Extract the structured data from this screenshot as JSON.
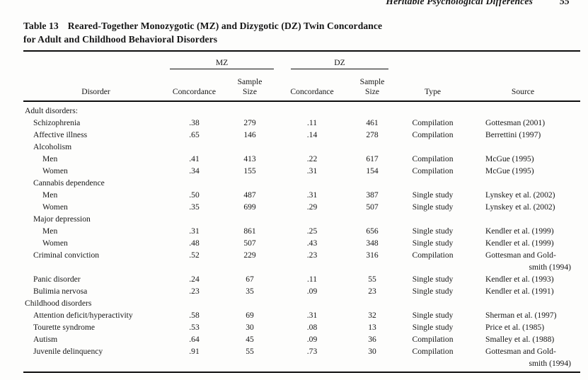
{
  "page": {
    "running_head": "Heritable Psychological Differences",
    "page_number": "55"
  },
  "table": {
    "label": "Table 13",
    "title_line1": "Reared-Together Monozygotic (MZ) and Dizygotic (DZ) Twin Concordance",
    "title_line2": "for Adult and Childhood Behavioral Disorders",
    "col_groups": {
      "mz": "MZ",
      "dz": "DZ"
    },
    "headers": {
      "disorder": "Disorder",
      "concordance": "Concordance",
      "sample_line1": "Sample",
      "sample_line2": "Size",
      "type": "Type",
      "source": "Source"
    },
    "rows": [
      {
        "label": "Adult disorders:",
        "indent": 0,
        "mz_concordance": "",
        "mz_sample": "",
        "dz_concordance": "",
        "dz_sample": "",
        "type": "",
        "source": "",
        "source2": ""
      },
      {
        "label": "Schizophrenia",
        "indent": 1,
        "mz_concordance": ".38",
        "mz_sample": "279",
        "dz_concordance": ".11",
        "dz_sample": "461",
        "type": "Compilation",
        "source": "Gottesman (2001)",
        "source2": ""
      },
      {
        "label": "Affective illness",
        "indent": 1,
        "mz_concordance": ".65",
        "mz_sample": "146",
        "dz_concordance": ".14",
        "dz_sample": "278",
        "type": "Compilation",
        "source": "Berrettini (1997)",
        "source2": ""
      },
      {
        "label": "Alcoholism",
        "indent": 1,
        "mz_concordance": "",
        "mz_sample": "",
        "dz_concordance": "",
        "dz_sample": "",
        "type": "",
        "source": "",
        "source2": ""
      },
      {
        "label": "Men",
        "indent": 2,
        "mz_concordance": ".41",
        "mz_sample": "413",
        "dz_concordance": ".22",
        "dz_sample": "617",
        "type": "Compilation",
        "source": "McGue (1995)",
        "source2": ""
      },
      {
        "label": "Women",
        "indent": 2,
        "mz_concordance": ".34",
        "mz_sample": "155",
        "dz_concordance": ".31",
        "dz_sample": "154",
        "type": "Compilation",
        "source": "McGue (1995)",
        "source2": ""
      },
      {
        "label": "Cannabis dependence",
        "indent": 1,
        "mz_concordance": "",
        "mz_sample": "",
        "dz_concordance": "",
        "dz_sample": "",
        "type": "",
        "source": "",
        "source2": ""
      },
      {
        "label": "Men",
        "indent": 2,
        "mz_concordance": ".50",
        "mz_sample": "487",
        "dz_concordance": ".31",
        "dz_sample": "387",
        "type": "Single study",
        "source": "Lynskey et al. (2002)",
        "source2": ""
      },
      {
        "label": "Women",
        "indent": 2,
        "mz_concordance": ".35",
        "mz_sample": "699",
        "dz_concordance": ".29",
        "dz_sample": "507",
        "type": "Single study",
        "source": "Lynskey et al. (2002)",
        "source2": ""
      },
      {
        "label": "Major depression",
        "indent": 1,
        "mz_concordance": "",
        "mz_sample": "",
        "dz_concordance": "",
        "dz_sample": "",
        "type": "",
        "source": "",
        "source2": ""
      },
      {
        "label": "Men",
        "indent": 2,
        "mz_concordance": ".31",
        "mz_sample": "861",
        "dz_concordance": ".25",
        "dz_sample": "656",
        "type": "Single study",
        "source": "Kendler et al. (1999)",
        "source2": ""
      },
      {
        "label": "Women",
        "indent": 2,
        "mz_concordance": ".48",
        "mz_sample": "507",
        "dz_concordance": ".43",
        "dz_sample": "348",
        "type": "Single study",
        "source": "Kendler et al. (1999)",
        "source2": ""
      },
      {
        "label": "Criminal conviction",
        "indent": 1,
        "mz_concordance": ".52",
        "mz_sample": "229",
        "dz_concordance": ".23",
        "dz_sample": "316",
        "type": "Compilation",
        "source": "Gottesman and Gold-",
        "source2": "smith (1994)"
      },
      {
        "label": "Panic disorder",
        "indent": 1,
        "mz_concordance": ".24",
        "mz_sample": "67",
        "dz_concordance": ".11",
        "dz_sample": "55",
        "type": "Single study",
        "source": "Kendler et al. (1993)",
        "source2": ""
      },
      {
        "label": "Bulimia nervosa",
        "indent": 1,
        "mz_concordance": ".23",
        "mz_sample": "35",
        "dz_concordance": ".09",
        "dz_sample": "23",
        "type": "Single study",
        "source": "Kendler et al. (1991)",
        "source2": ""
      },
      {
        "label": "Childhood disorders",
        "indent": 0,
        "mz_concordance": "",
        "mz_sample": "",
        "dz_concordance": "",
        "dz_sample": "",
        "type": "",
        "source": "",
        "source2": ""
      },
      {
        "label": "Attention deficit/hyperactivity",
        "indent": 1,
        "mz_concordance": ".58",
        "mz_sample": "69",
        "dz_concordance": ".31",
        "dz_sample": "32",
        "type": "Single study",
        "source": "Sherman et al. (1997)",
        "source2": ""
      },
      {
        "label": "Tourette syndrome",
        "indent": 1,
        "mz_concordance": ".53",
        "mz_sample": "30",
        "dz_concordance": ".08",
        "dz_sample": "13",
        "type": "Single study",
        "source": "Price et al. (1985)",
        "source2": ""
      },
      {
        "label": "Autism",
        "indent": 1,
        "mz_concordance": ".64",
        "mz_sample": "45",
        "dz_concordance": ".09",
        "dz_sample": "36",
        "type": "Compilation",
        "source": "Smalley et al. (1988)",
        "source2": ""
      },
      {
        "label": "Juvenile delinquency",
        "indent": 1,
        "mz_concordance": ".91",
        "mz_sample": "55",
        "dz_concordance": ".73",
        "dz_sample": "30",
        "type": "Compilation",
        "source": "Gottesman and Gold-",
        "source2": "smith (1994)"
      }
    ]
  }
}
